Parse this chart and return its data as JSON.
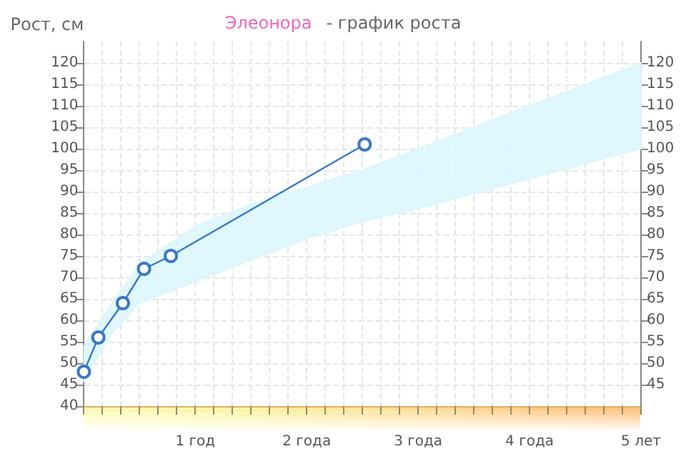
{
  "chart_data": {
    "type": "line",
    "title": "Элеонора",
    "subtitle": "- график роста",
    "ylabel": "Рост, см",
    "grid": true,
    "marker": "circle",
    "line_style": "solid",
    "xlim": [
      0,
      5
    ],
    "xticks": [
      {
        "value": 0,
        "label": null
      },
      {
        "value": 0.167,
        "label": null
      },
      {
        "value": 0.333,
        "label": null
      },
      {
        "value": 0.5,
        "label": null
      },
      {
        "value": 0.667,
        "label": null
      },
      {
        "value": 0.833,
        "label": null
      },
      {
        "value": 1,
        "label": "1 год"
      },
      {
        "value": 1.167,
        "label": null
      },
      {
        "value": 1.333,
        "label": null
      },
      {
        "value": 1.5,
        "label": null
      },
      {
        "value": 1.667,
        "label": null
      },
      {
        "value": 1.833,
        "label": null
      },
      {
        "value": 2,
        "label": "2 года"
      },
      {
        "value": 2.167,
        "label": null
      },
      {
        "value": 2.333,
        "label": null
      },
      {
        "value": 2.5,
        "label": null
      },
      {
        "value": 2.667,
        "label": null
      },
      {
        "value": 2.833,
        "label": null
      },
      {
        "value": 3,
        "label": "3 года"
      },
      {
        "value": 3.167,
        "label": null
      },
      {
        "value": 3.333,
        "label": null
      },
      {
        "value": 3.5,
        "label": null
      },
      {
        "value": 3.667,
        "label": null
      },
      {
        "value": 3.833,
        "label": null
      },
      {
        "value": 4,
        "label": "4 года"
      },
      {
        "value": 4.167,
        "label": null
      },
      {
        "value": 4.333,
        "label": null
      },
      {
        "value": 4.5,
        "label": null
      },
      {
        "value": 4.667,
        "label": null
      },
      {
        "value": 4.833,
        "label": null
      },
      {
        "value": 5,
        "label": "5 лет"
      }
    ],
    "ylim": [
      40,
      125
    ],
    "yticks": [
      40,
      45,
      50,
      55,
      60,
      65,
      70,
      75,
      80,
      85,
      90,
      95,
      100,
      105,
      110,
      115,
      120
    ],
    "y2lim": [
      40,
      125
    ],
    "y2ticks": [
      45,
      50,
      55,
      60,
      65,
      70,
      75,
      80,
      85,
      90,
      95,
      100,
      105,
      110,
      115,
      120
    ],
    "series": [
      {
        "type": "area",
        "color": "#dcf6fd",
        "x": [
          0,
          0.25,
          0.5,
          1,
          1.5,
          2,
          2.5,
          3,
          4,
          5
        ],
        "values": [
          null,
          null,
          null,
          null,
          null,
          null,
          null,
          null,
          null,
          null
        ],
        "lower": [
          46,
          57,
          64,
          69,
          74,
          79,
          83,
          86,
          93,
          100
        ],
        "upper": [
          54,
          64,
          73,
          82,
          87,
          91,
          95,
          100,
          110,
          120
        ]
      },
      {
        "type": "line",
        "color": "#3a78c8",
        "x": [
          0,
          0.13,
          0.35,
          0.54,
          0.78,
          2.52
        ],
        "values": [
          48,
          56,
          64,
          72,
          75,
          101
        ]
      }
    ]
  }
}
